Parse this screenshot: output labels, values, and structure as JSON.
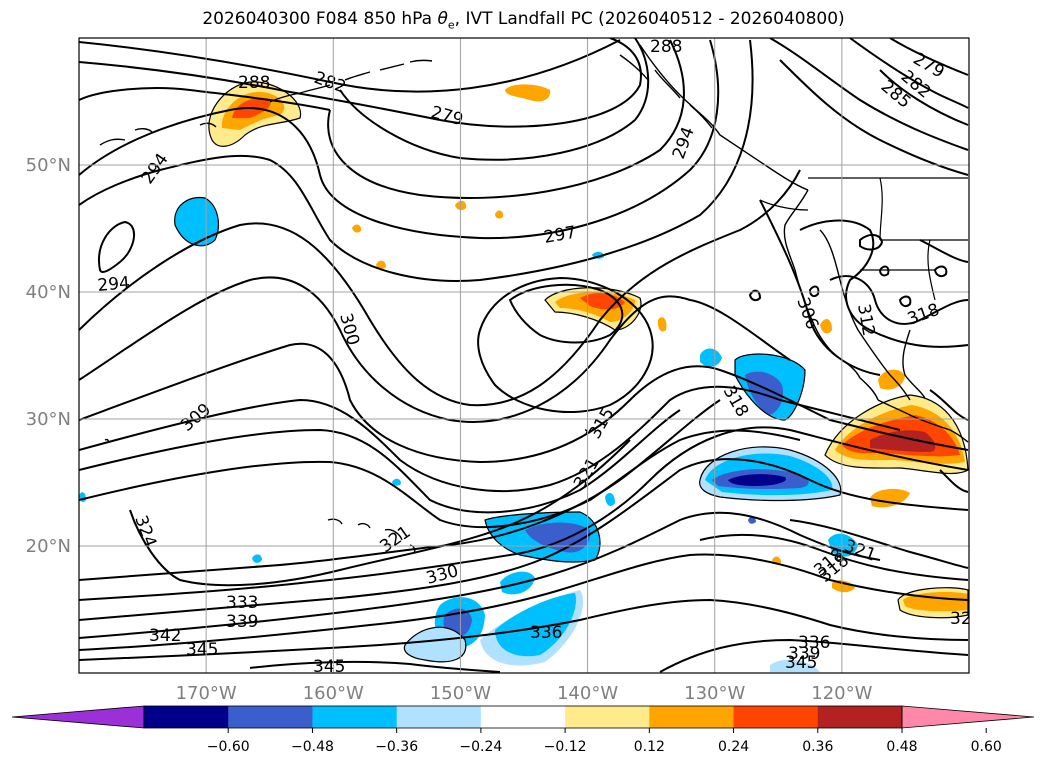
{
  "title": {
    "prefix": "2026040300 F084 850 hPa ",
    "theta": "θ",
    "sub": "e",
    "suffix": ", IVT Landfall PC (2026040512 - 2026040800)"
  },
  "map": {
    "lon_range": [
      -180,
      -110
    ],
    "lat_range": [
      10,
      60
    ],
    "lon_ticks": [
      {
        "lon": -170,
        "label": "170°W"
      },
      {
        "lon": -160,
        "label": "160°W"
      },
      {
        "lon": -150,
        "label": "150°W"
      },
      {
        "lon": -140,
        "label": "140°W"
      },
      {
        "lon": -130,
        "label": "130°W"
      },
      {
        "lon": -120,
        "label": "120°W"
      }
    ],
    "lat_ticks": [
      {
        "lat": 50,
        "label": "50°N"
      },
      {
        "lat": 40,
        "label": "40°N"
      },
      {
        "lat": 30,
        "label": "30°N"
      },
      {
        "lat": 20,
        "label": "20°N"
      }
    ],
    "grid": true
  },
  "contour_labels": [
    "288",
    "282",
    "288",
    "279",
    "285",
    "282",
    "279",
    "294",
    "297",
    "294",
    "294",
    "300",
    "309",
    "324",
    "315",
    "321",
    "318",
    "321",
    "330",
    "333",
    "339",
    "342",
    "345",
    "336",
    "345",
    "318",
    "321",
    "318",
    "32",
    "336",
    "339",
    "345",
    "312",
    "318",
    "306"
  ],
  "colorbar": {
    "ticks": [
      "−0.60",
      "−0.48",
      "−0.36",
      "−0.24",
      "−0.12",
      "0.12",
      "0.24",
      "0.36",
      "0.48",
      "0.60"
    ],
    "colors": [
      "#9b30d9",
      "#00008b",
      "#3a5fcd",
      "#00bfff",
      "#b0e2ff",
      "#ffffff",
      "#ffeb8b",
      "#ffa500",
      "#ff4500",
      "#b22222",
      "#ff88aa"
    ]
  }
}
